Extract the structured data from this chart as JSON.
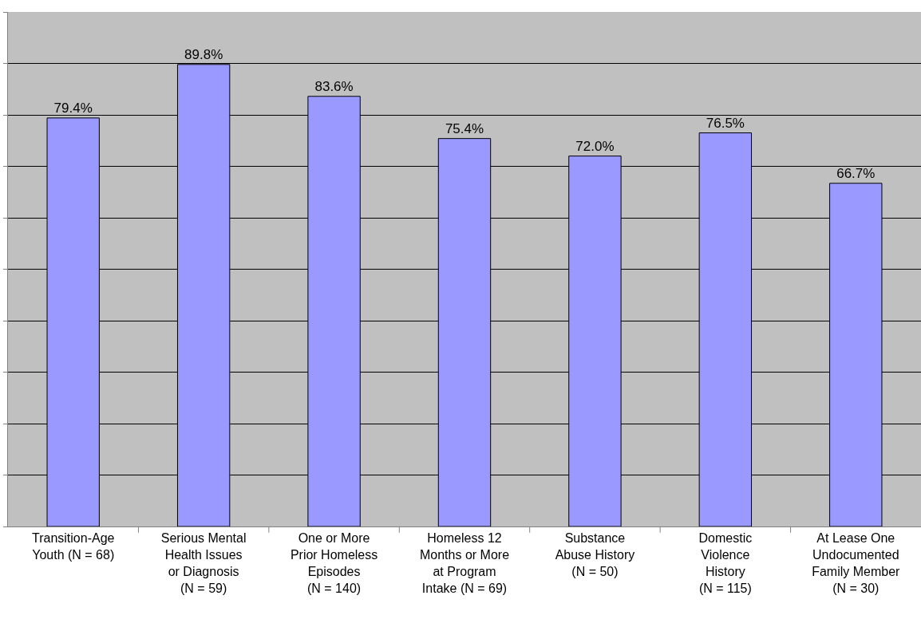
{
  "chart_data": {
    "type": "bar",
    "categories": [
      "Transition-Age\nYouth (N = 68)",
      "Serious Mental\nHealth Issues\nor Diagnosis\n(N = 59)",
      "One or More\nPrior Homeless\nEpisodes\n(N = 140)",
      "Homeless 12\nMonths or More\nat Program\nIntake (N = 69)",
      "Substance\nAbuse History\n(N = 50)",
      "Domestic\nViolence\nHistory\n(N = 115)",
      "At Lease One\nUndocumented\nFamily Member\n(N = 30)"
    ],
    "values": [
      79.4,
      89.8,
      83.6,
      75.4,
      72.0,
      76.5,
      66.7
    ],
    "value_labels": [
      "79.4%",
      "89.8%",
      "83.6%",
      "75.4%",
      "72.0%",
      "76.5%",
      "66.7%"
    ],
    "color": "#9999ff",
    "ylim": [
      0,
      100
    ],
    "yticks": [
      {
        "value": 0,
        "label": null
      },
      {
        "value": 10,
        "label": null
      },
      {
        "value": 20,
        "label": null
      },
      {
        "value": 30,
        "label": null
      },
      {
        "value": 40,
        "label": null
      },
      {
        "value": 50,
        "label": null
      },
      {
        "value": 60,
        "label": null
      },
      {
        "value": 70,
        "label": null
      },
      {
        "value": 80,
        "label": null
      },
      {
        "value": 90,
        "label": null
      },
      {
        "value": 100,
        "label": null
      }
    ],
    "grid": "y",
    "tick_labels": "x"
  }
}
